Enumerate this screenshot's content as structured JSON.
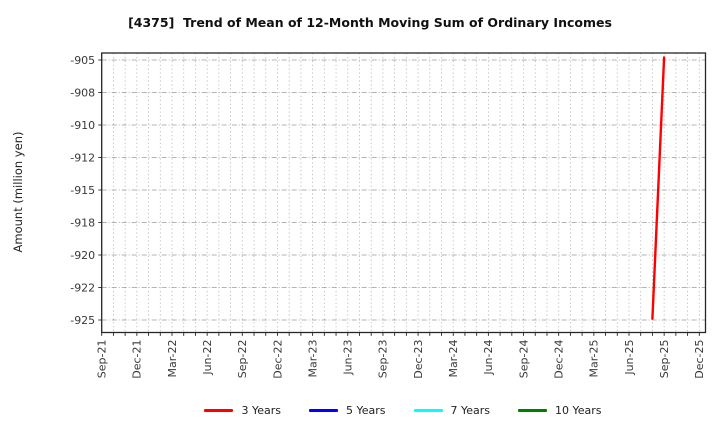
{
  "chart_data": {
    "type": "line",
    "title": "[4375]  Trend of Mean of 12-Month Moving Sum of Ordinary Incomes",
    "ylabel": "Amount (million yen)",
    "xlabel": "",
    "x_tick_labels": [
      "Sep-21",
      "Dec-21",
      "Mar-22",
      "Jun-22",
      "Sep-22",
      "Dec-22",
      "Mar-23",
      "Jun-23",
      "Sep-23",
      "Dec-23",
      "Mar-24",
      "Jun-24",
      "Sep-24",
      "Dec-24",
      "Mar-25",
      "Jun-25",
      "Sep-25",
      "Dec-25"
    ],
    "x_axis_months_total": 51,
    "y_ticks": [
      {
        "label": "-905",
        "value": -905
      },
      {
        "label": "-908",
        "value": -907.5
      },
      {
        "label": "-910",
        "value": -910
      },
      {
        "label": "-912",
        "value": -912.5
      },
      {
        "label": "-915",
        "value": -915
      },
      {
        "label": "-918",
        "value": -917.5
      },
      {
        "label": "-920",
        "value": -920
      },
      {
        "label": "-922",
        "value": -922.5
      },
      {
        "label": "-925",
        "value": -925
      }
    ],
    "ylim": [
      -926.0,
      -904.5
    ],
    "grid": {
      "horizontal_style": "dash-dot",
      "vertical_style": "dotted",
      "vertical_spacing": "monthly",
      "visible": true
    },
    "legend": {
      "position": "bottom-center"
    },
    "series": [
      {
        "name": "3 Years",
        "color": "#ff0000",
        "points": [
          {
            "x_label": "Aug-25",
            "month_index": 47,
            "value": -924.9
          },
          {
            "x_label": "Sep-25",
            "month_index": 48,
            "value": -904.8
          }
        ]
      },
      {
        "name": "5 Years",
        "color": "#0000ff",
        "points": []
      },
      {
        "name": "7 Years",
        "color": "#00ffff",
        "points": []
      },
      {
        "name": "10 Years",
        "color": "#008000",
        "points": []
      }
    ]
  }
}
